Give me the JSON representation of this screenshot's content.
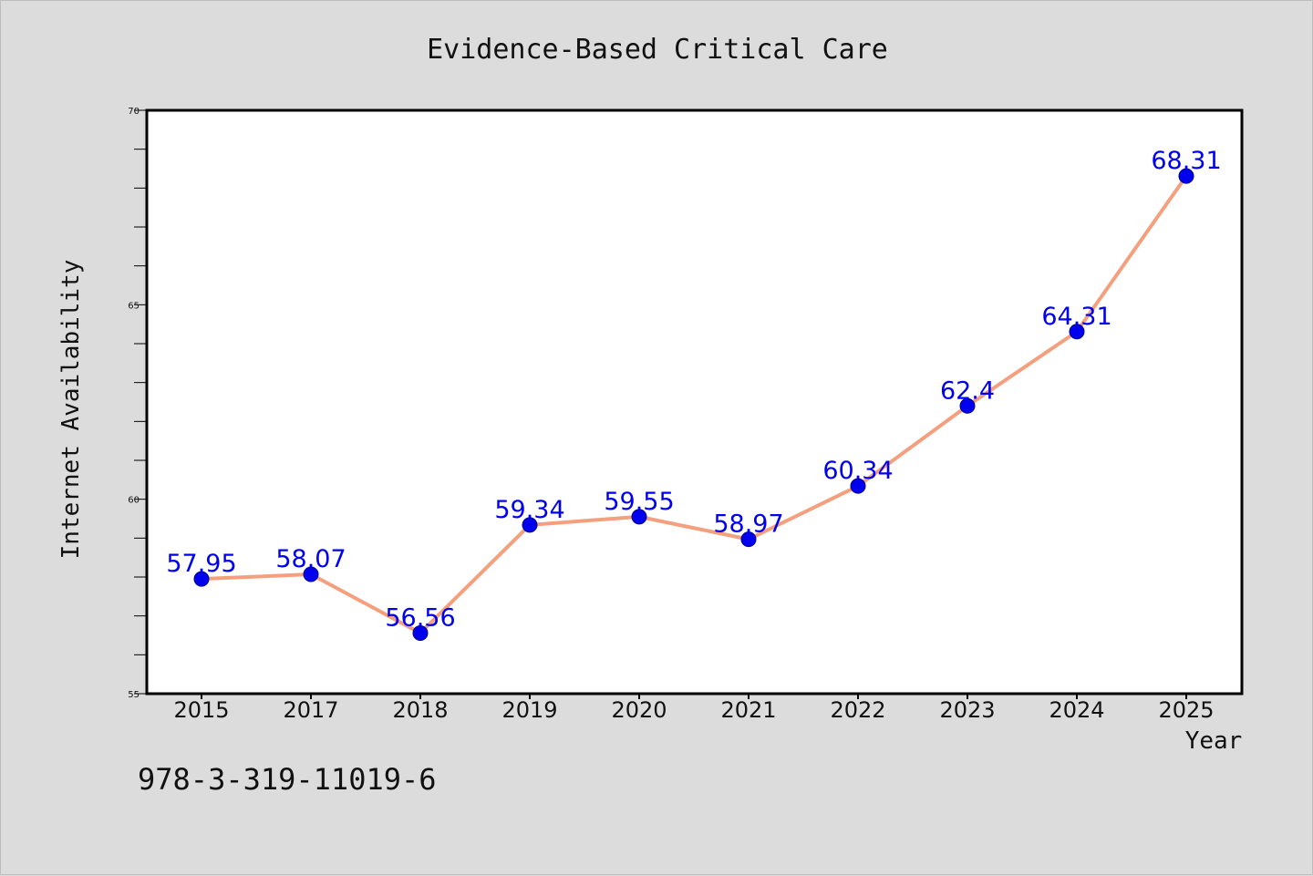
{
  "chart_data": {
    "type": "line",
    "title": "Evidence-Based Critical Care",
    "xlabel": "Year",
    "ylabel": "Internet Availability",
    "categories": [
      "2015",
      "2017",
      "2018",
      "2019",
      "2020",
      "2021",
      "2022",
      "2023",
      "2024",
      "2025"
    ],
    "series": [
      {
        "values": [
          57.95,
          58.07,
          56.56,
          59.34,
          59.55,
          58.97,
          60.34,
          62.4,
          64.31,
          68.31
        ]
      }
    ],
    "data_labels": [
      "57.95",
      "58.07",
      "56.56",
      "59.34",
      "59.55",
      "58.97",
      "60.34",
      "62.4",
      "64.31",
      "68.31"
    ],
    "ylim": [
      55,
      70
    ],
    "yticks": [
      "55",
      "60",
      "65",
      "70"
    ],
    "grid": false,
    "legend": "none",
    "colors": {
      "line": "#f4a07e",
      "marker": "#0000ee",
      "label": "#0000ee",
      "background": "#dcdcdc",
      "plot_background": "#ffffff"
    }
  },
  "footer": {
    "isbn": "978-3-319-11019-6"
  }
}
